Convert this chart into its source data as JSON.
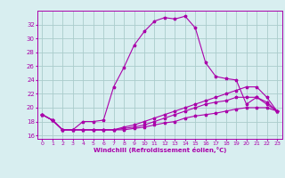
{
  "xlabel": "Windchill (Refroidissement éolien,°C)",
  "x": [
    0,
    1,
    2,
    3,
    4,
    5,
    6,
    7,
    8,
    9,
    10,
    11,
    12,
    13,
    14,
    15,
    16,
    17,
    18,
    19,
    20,
    21,
    22,
    23
  ],
  "line1": [
    19.0,
    18.2,
    16.8,
    16.8,
    18.0,
    18.0,
    18.2,
    23.0,
    25.8,
    29.0,
    31.0,
    32.5,
    33.0,
    32.8,
    33.2,
    31.5,
    26.5,
    24.5,
    24.2,
    24.0,
    20.5,
    21.5,
    20.5,
    19.5
  ],
  "line2": [
    19.0,
    18.2,
    16.8,
    16.8,
    16.8,
    16.8,
    16.8,
    16.8,
    17.2,
    17.5,
    18.0,
    18.5,
    19.0,
    19.5,
    20.0,
    20.5,
    21.0,
    21.5,
    22.0,
    22.5,
    23.0,
    23.0,
    21.5,
    19.5
  ],
  "line3": [
    19.0,
    18.2,
    16.8,
    16.8,
    16.8,
    16.8,
    16.8,
    16.8,
    17.0,
    17.2,
    17.5,
    18.0,
    18.5,
    19.0,
    19.5,
    20.0,
    20.5,
    20.8,
    21.0,
    21.5,
    21.5,
    21.5,
    20.8,
    19.5
  ],
  "line4": [
    19.0,
    18.2,
    16.8,
    16.8,
    16.8,
    16.8,
    16.8,
    16.8,
    16.8,
    17.0,
    17.2,
    17.5,
    17.8,
    18.0,
    18.5,
    18.8,
    19.0,
    19.2,
    19.5,
    19.8,
    20.0,
    20.0,
    20.0,
    19.5
  ],
  "line_color": "#aa00aa",
  "bg_color": "#d8eef0",
  "grid_color": "#aacccc",
  "ylim": [
    15.5,
    34.0
  ],
  "xlim": [
    -0.5,
    23.5
  ],
  "yticks": [
    16,
    18,
    20,
    22,
    24,
    26,
    28,
    30,
    32
  ],
  "xticks": [
    0,
    1,
    2,
    3,
    4,
    5,
    6,
    7,
    8,
    9,
    10,
    11,
    12,
    13,
    14,
    15,
    16,
    17,
    18,
    19,
    20,
    21,
    22,
    23
  ],
  "figsize": [
    3.2,
    2.0
  ],
  "dpi": 100
}
